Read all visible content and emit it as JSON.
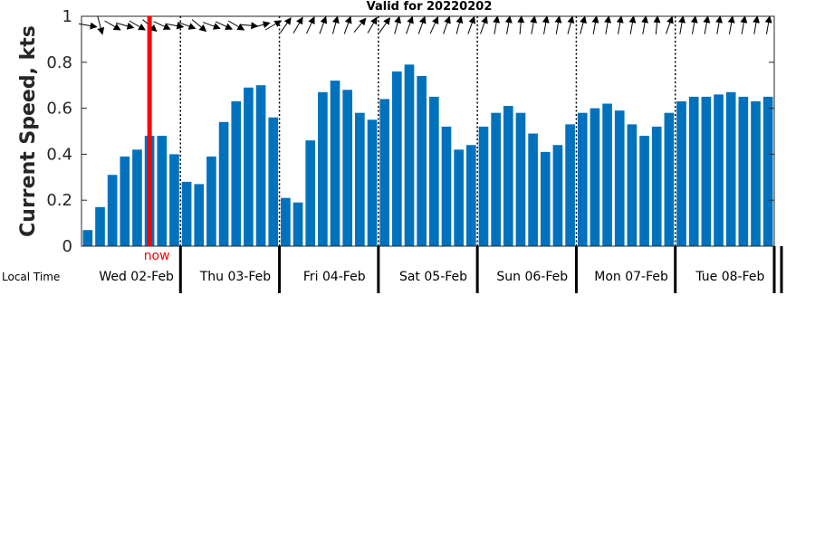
{
  "chart_data": {
    "type": "bar",
    "title": "Valid for 20220202",
    "ylabel": "Current Speed, kts",
    "xlabel": "Local Time",
    "ylim": [
      0,
      1
    ],
    "yticks": [
      0,
      0.2,
      0.4,
      0.6,
      0.8,
      1
    ],
    "ytick_labels": [
      "0",
      "0.2",
      "0.4",
      "0.6",
      "0.8",
      "1"
    ],
    "bar_color": "#0072bd",
    "now_color": "#ff0000",
    "now_label": "now",
    "now_index": 5,
    "grid": false,
    "days": [
      "Wed 02-Feb",
      "Thu 03-Feb",
      "Fri 04-Feb",
      "Sat 05-Feb",
      "Sun 06-Feb",
      "Mon 07-Feb",
      "Tue 08-Feb"
    ],
    "values": [
      0.07,
      0.17,
      0.31,
      0.39,
      0.42,
      0.48,
      0.48,
      0.4,
      0.28,
      0.27,
      0.39,
      0.54,
      0.63,
      0.69,
      0.7,
      0.56,
      0.21,
      0.19,
      0.46,
      0.67,
      0.72,
      0.68,
      0.58,
      0.55,
      0.64,
      0.76,
      0.79,
      0.74,
      0.65,
      0.52,
      0.42,
      0.44,
      0.52,
      0.58,
      0.61,
      0.58,
      0.49,
      0.41,
      0.44,
      0.53,
      0.58,
      0.6,
      0.62,
      0.59,
      0.53,
      0.48,
      0.52,
      0.58,
      0.63,
      0.65,
      0.65,
      0.66,
      0.67,
      0.65,
      0.63,
      0.65
    ],
    "direction_arrows_deg": [
      100,
      165,
      120,
      105,
      120,
      130,
      115,
      100,
      110,
      130,
      110,
      115,
      120,
      95,
      75,
      60,
      35,
      30,
      25,
      20,
      15,
      20,
      40,
      30,
      35,
      15,
      20,
      20,
      25,
      20,
      15,
      20,
      20,
      10,
      10,
      5,
      10,
      10,
      10,
      15,
      15,
      10,
      10,
      10,
      10,
      10,
      5,
      20,
      10,
      10,
      10,
      10,
      10,
      10,
      10,
      10
    ]
  }
}
